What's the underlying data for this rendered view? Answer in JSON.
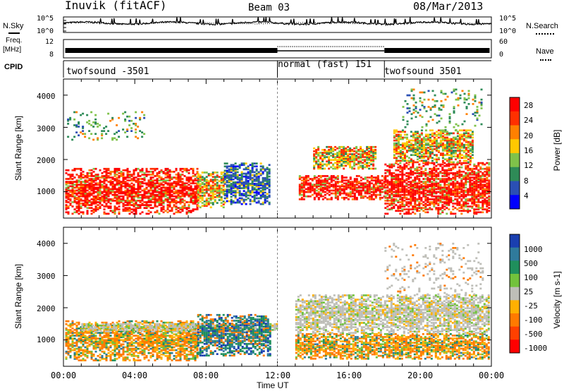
{
  "header": {
    "station": "Inuvik (fitACF)",
    "beam": "Beam 03",
    "date": "08/Mar/2013"
  },
  "side_labels": {
    "nsky": "N.Sky",
    "freq_line1": "Freq.",
    "freq_line2": "[MHz]",
    "cpid": "CPID",
    "nsearch": "N.Search",
    "nave": "Nave"
  },
  "chart_data": [
    {
      "type": "line",
      "panel": "noise",
      "series": [
        {
          "name": "N.Sky"
        },
        {
          "name": "N.Search"
        }
      ],
      "ylabels_left": [
        "10^5",
        "10^0"
      ],
      "ylabels_right": [
        "10^5",
        "10^0"
      ],
      "ylim": [
        1,
        100000
      ],
      "log_scale": true,
      "typical_level": 1000
    },
    {
      "type": "line",
      "panel": "frequency_nave",
      "ylabels_left": [
        "12",
        "8"
      ],
      "ylabels_right": [
        "60",
        "0"
      ],
      "freq_MHz_approx": 10.4,
      "nave_approx": 40
    },
    {
      "type": "table",
      "panel": "cpid",
      "segments": [
        {
          "label": "twofsound -3501",
          "start_hour": 0,
          "end_hour": 12
        },
        {
          "label": "normal (fast) 151",
          "start_hour": 12,
          "end_hour": 18
        },
        {
          "label": "twofsound 3501",
          "start_hour": 18,
          "end_hour": 24
        }
      ]
    },
    {
      "type": "heatmap",
      "panel": "power",
      "ylabel": "Slant Range [km]",
      "yticks": [
        1000,
        2000,
        3000,
        4000
      ],
      "ylim": [
        180,
        4500
      ],
      "xlim": [
        0,
        24
      ],
      "colorbar": {
        "label": "Power [dB]",
        "ticks": [
          "4",
          "8",
          "12",
          "16",
          "20",
          "24",
          "28"
        ],
        "colors": [
          "#0000ff",
          "#2a4fb4",
          "#2e8b57",
          "#7fc24a",
          "#ffc800",
          "#ff8000",
          "#ff3000",
          "#ff0000"
        ]
      },
      "bands": [
        {
          "x0": 0.1,
          "x1": 7.5,
          "r0": 300,
          "r1": 1700,
          "level": "high"
        },
        {
          "x0": 7.5,
          "x1": 9.0,
          "r0": 500,
          "r1": 1600,
          "level": "mid"
        },
        {
          "x0": 9.0,
          "x1": 11.6,
          "r0": 600,
          "r1": 1900,
          "level": "low"
        },
        {
          "x0": 13.2,
          "x1": 18.0,
          "r0": 750,
          "r1": 1500,
          "level": "high"
        },
        {
          "x0": 18.0,
          "x1": 23.9,
          "r0": 300,
          "r1": 1900,
          "level": "high"
        },
        {
          "x0": 14.0,
          "x1": 17.5,
          "r0": 1700,
          "r1": 2400,
          "level": "mid"
        },
        {
          "x0": 18.5,
          "x1": 23.0,
          "r0": 1900,
          "r1": 2900,
          "level": "mid"
        },
        {
          "x0": 0.2,
          "x1": 4.5,
          "r0": 2600,
          "r1": 3500,
          "level": "sparse"
        },
        {
          "x0": 19.0,
          "x1": 23.5,
          "r0": 2900,
          "r1": 4200,
          "level": "sparse"
        }
      ]
    },
    {
      "type": "heatmap",
      "panel": "velocity",
      "ylabel": "Slant Range [km]",
      "yticks": [
        1000,
        2000,
        3000,
        4000
      ],
      "ylim": [
        180,
        4500
      ],
      "xlim": [
        0,
        24
      ],
      "xticks": [
        "00:00",
        "04:00",
        "08:00",
        "12:00",
        "16:00",
        "20:00",
        "00:00"
      ],
      "xlabel": "Time UT",
      "colorbar": {
        "label": "Velocity [m s-1]",
        "ticks": [
          "1000",
          "500",
          "100",
          "25",
          "-25",
          "-100",
          "-500",
          "-1000"
        ],
        "colors": [
          "#1a3fb0",
          "#2f7a9c",
          "#1f8f5c",
          "#72c23c",
          "#bebeb8",
          "#ffb000",
          "#ff7a00",
          "#ff4000",
          "#ff0000"
        ]
      },
      "bands": [
        {
          "x0": 0.1,
          "x1": 7.5,
          "r0": 350,
          "r1": 1600,
          "level": "neg"
        },
        {
          "x0": 1.0,
          "x1": 12.0,
          "r0": 1250,
          "r1": 1500,
          "level": "gray"
        },
        {
          "x0": 7.5,
          "x1": 11.6,
          "r0": 500,
          "r1": 1800,
          "level": "pos"
        },
        {
          "x0": 13.0,
          "x1": 23.9,
          "r0": 400,
          "r1": 1200,
          "level": "neg"
        },
        {
          "x0": 13.0,
          "x1": 23.9,
          "r0": 1200,
          "r1": 2400,
          "level": "gray"
        },
        {
          "x0": 18.0,
          "x1": 23.5,
          "r0": 2400,
          "r1": 4000,
          "level": "gray_sparse"
        }
      ]
    }
  ]
}
